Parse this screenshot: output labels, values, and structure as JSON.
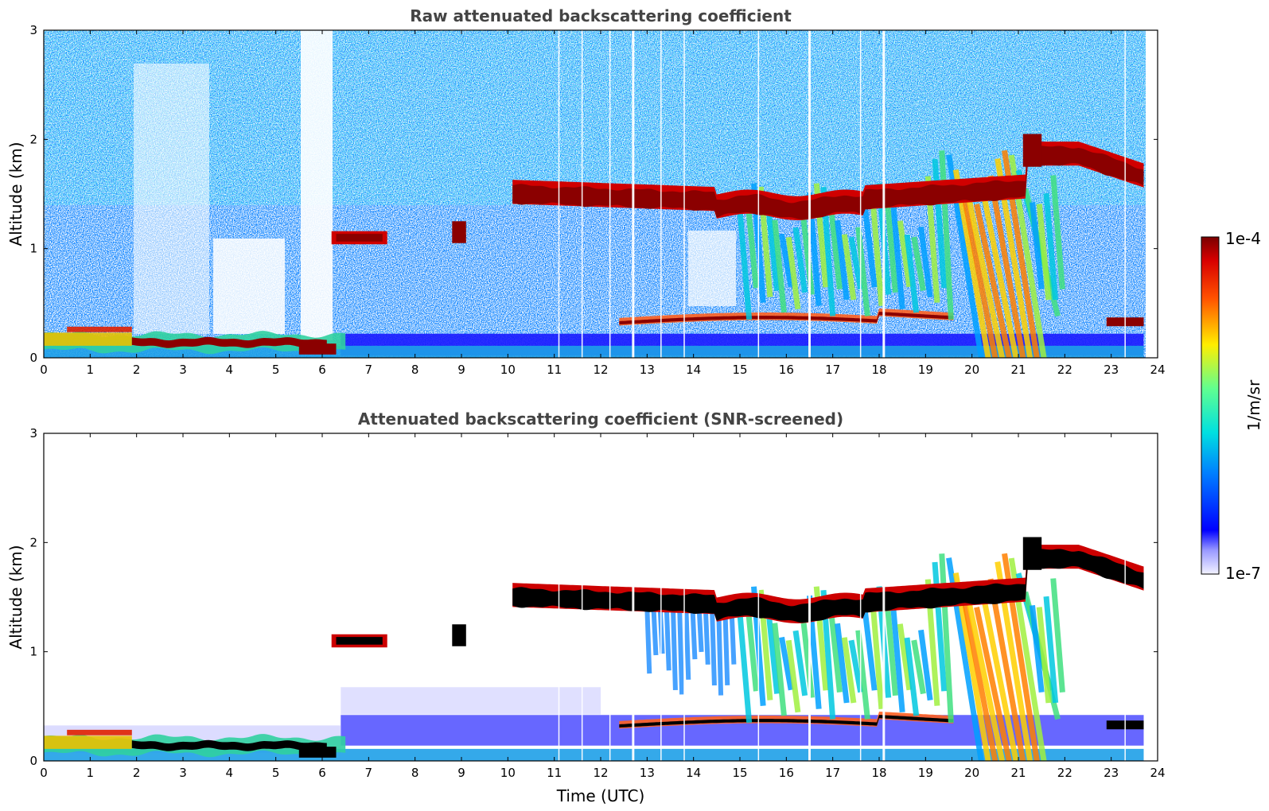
{
  "chart_data": [
    {
      "type": "heatmap",
      "title": "Raw attenuated backscattering coefficient",
      "xlabel": "",
      "ylabel": "Altitude (km)",
      "xlim": [
        0,
        24
      ],
      "ylim": [
        0,
        3
      ],
      "x_ticks": [
        0,
        1,
        2,
        3,
        4,
        5,
        6,
        7,
        8,
        9,
        10,
        11,
        12,
        13,
        14,
        15,
        16,
        17,
        18,
        19,
        20,
        21,
        22,
        23,
        24
      ],
      "y_ticks": [
        0,
        1,
        2,
        3
      ],
      "screened": false,
      "features": [
        {
          "label": "cloud",
          "t": [
            6.2,
            7.4
          ],
          "alt": [
            1.0,
            1.2
          ]
        },
        {
          "label": "cloud",
          "t": [
            8.8,
            9.1
          ],
          "alt": [
            1.0,
            1.3
          ]
        },
        {
          "label": "cloud",
          "t": [
            10.1,
            23.7
          ],
          "alt": [
            1.3,
            2.0
          ]
        },
        {
          "label": "boundary layer",
          "t": [
            0,
            6.5
          ],
          "alt": [
            0.0,
            0.3
          ]
        },
        {
          "label": "aerosol layer",
          "t": [
            12.4,
            19.6
          ],
          "alt": [
            0.2,
            0.45
          ]
        }
      ]
    },
    {
      "type": "heatmap",
      "title": "Attenuated backscattering coefficient (SNR-screened)",
      "xlabel": "Time (UTC)",
      "ylabel": "Altitude (km)",
      "xlim": [
        0,
        24
      ],
      "ylim": [
        0,
        3
      ],
      "x_ticks": [
        0,
        1,
        2,
        3,
        4,
        5,
        6,
        7,
        8,
        9,
        10,
        11,
        12,
        13,
        14,
        15,
        16,
        17,
        18,
        19,
        20,
        21,
        22,
        23,
        24
      ],
      "y_ticks": [
        0,
        1,
        2,
        3
      ],
      "screened": true
    }
  ],
  "colorbar": {
    "label": "1/m/sr",
    "max_label": "1e-4",
    "min_label": "1e-7",
    "range": [
      1e-07,
      0.0001
    ],
    "scale": "log",
    "colormap": "jet"
  }
}
